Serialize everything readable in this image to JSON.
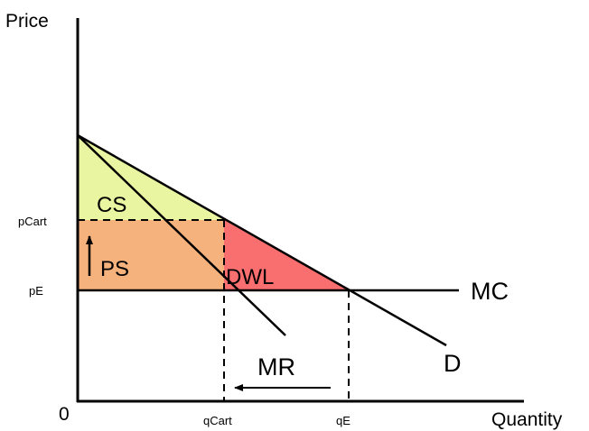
{
  "axes": {
    "y_title": "Price",
    "x_title": "Quantity",
    "origin_label": "0"
  },
  "tick_labels": {
    "p_cart": "pCart",
    "p_e": "pE",
    "q_cart": "qCart",
    "q_e": "qE"
  },
  "curves": {
    "mc": "MC",
    "mr": "MR",
    "demand": "D"
  },
  "regions": {
    "consumer_surplus": {
      "label": "CS",
      "color": "#e9f5a0"
    },
    "producer_surplus": {
      "label": "PS",
      "color": "#f6b27d"
    },
    "deadweight_loss": {
      "label": "DWL",
      "color": "#f96e6e"
    }
  },
  "arrows": {
    "ps_increase": "up",
    "quantity_reduction": "left"
  },
  "colors": {
    "line": "#000000",
    "background": "#ffffff"
  }
}
